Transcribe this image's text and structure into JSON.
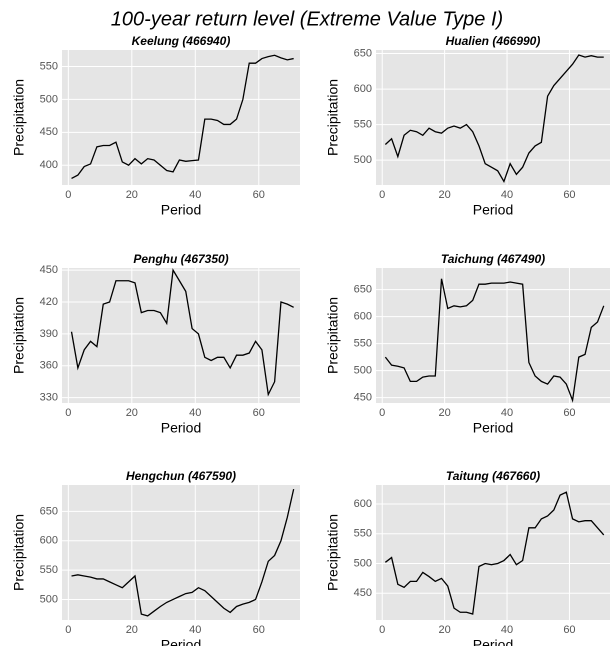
{
  "title": "100-year return level  (Extreme Value Type I)",
  "chart_data": [
    {
      "type": "line",
      "title": "Keelung (466940)",
      "x_label": "Period",
      "y_label": "Precipitation",
      "x": [
        1,
        3,
        5,
        7,
        9,
        11,
        13,
        15,
        17,
        19,
        21,
        23,
        25,
        27,
        29,
        31,
        33,
        35,
        37,
        39,
        41,
        43,
        45,
        47,
        49,
        51,
        53,
        55,
        57,
        59,
        61,
        63,
        65,
        67,
        69,
        71
      ],
      "values": [
        380,
        385,
        398,
        402,
        428,
        430,
        430,
        435,
        405,
        400,
        410,
        402,
        410,
        408,
        400,
        392,
        390,
        408,
        406,
        407,
        408,
        470,
        470,
        468,
        462,
        462,
        470,
        500,
        555,
        555,
        562,
        565,
        567,
        563,
        560,
        562
      ],
      "xlim": [
        -2,
        73
      ],
      "xticks": [
        0,
        20,
        40,
        60
      ],
      "ylim": [
        370,
        575
      ],
      "yticks": [
        400,
        450,
        500,
        550
      ],
      "color": "#000000",
      "grid": true
    },
    {
      "type": "line",
      "title": "Hualien (466990)",
      "x_label": "Period",
      "y_label": "Precipitation",
      "x": [
        1,
        3,
        5,
        7,
        9,
        11,
        13,
        15,
        17,
        19,
        21,
        23,
        25,
        27,
        29,
        31,
        33,
        35,
        37,
        39,
        41,
        43,
        45,
        47,
        49,
        51,
        53,
        55,
        57,
        59,
        61,
        63,
        65,
        67,
        69,
        71
      ],
      "values": [
        522,
        530,
        505,
        535,
        542,
        540,
        535,
        545,
        540,
        538,
        545,
        548,
        545,
        550,
        540,
        520,
        495,
        490,
        485,
        470,
        495,
        480,
        490,
        510,
        520,
        525,
        590,
        605,
        615,
        625,
        635,
        648,
        645,
        647,
        645,
        645
      ],
      "xlim": [
        -2,
        73
      ],
      "xticks": [
        0,
        20,
        40,
        60
      ],
      "ylim": [
        465,
        655
      ],
      "yticks": [
        500,
        550,
        600,
        650
      ],
      "color": "#000000",
      "grid": true
    },
    {
      "type": "line",
      "title": "Penghu (467350)",
      "x_label": "Period",
      "y_label": "Precipitation",
      "x": [
        1,
        3,
        5,
        7,
        9,
        11,
        13,
        15,
        17,
        19,
        21,
        23,
        25,
        27,
        29,
        31,
        33,
        35,
        37,
        39,
        41,
        43,
        45,
        47,
        49,
        51,
        53,
        55,
        57,
        59,
        61,
        63,
        65,
        67,
        69,
        71
      ],
      "values": [
        392,
        358,
        375,
        383,
        378,
        418,
        420,
        440,
        440,
        440,
        438,
        410,
        412,
        412,
        410,
        400,
        450,
        440,
        430,
        395,
        390,
        368,
        365,
        368,
        368,
        358,
        370,
        370,
        372,
        383,
        375,
        333,
        345,
        420,
        418,
        415
      ],
      "xlim": [
        -2,
        73
      ],
      "xticks": [
        0,
        20,
        40,
        60
      ],
      "ylim": [
        325,
        452
      ],
      "yticks": [
        330,
        360,
        390,
        420,
        450
      ],
      "color": "#000000",
      "grid": true
    },
    {
      "type": "line",
      "title": "Taichung (467490)",
      "x_label": "Period",
      "y_label": "Precipitation",
      "x": [
        1,
        3,
        5,
        7,
        9,
        11,
        13,
        15,
        17,
        19,
        21,
        23,
        25,
        27,
        29,
        31,
        33,
        35,
        37,
        39,
        41,
        43,
        45,
        47,
        49,
        51,
        53,
        55,
        57,
        59,
        61,
        63,
        65,
        67,
        69,
        71
      ],
      "values": [
        525,
        510,
        508,
        505,
        480,
        480,
        488,
        490,
        490,
        670,
        615,
        620,
        618,
        620,
        630,
        660,
        660,
        662,
        662,
        662,
        664,
        662,
        660,
        515,
        490,
        480,
        475,
        490,
        488,
        475,
        445,
        525,
        530,
        580,
        590,
        620
      ],
      "xlim": [
        -2,
        73
      ],
      "xticks": [
        0,
        20,
        40,
        60
      ],
      "ylim": [
        440,
        690
      ],
      "yticks": [
        450,
        500,
        550,
        600,
        650
      ],
      "color": "#000000",
      "grid": true
    },
    {
      "type": "line",
      "title": "Hengchun (467590)",
      "x_label": "Period",
      "y_label": "Precipitation",
      "x": [
        1,
        3,
        5,
        7,
        9,
        11,
        13,
        15,
        17,
        19,
        21,
        23,
        25,
        27,
        29,
        31,
        33,
        35,
        37,
        39,
        41,
        43,
        45,
        47,
        49,
        51,
        53,
        55,
        57,
        59,
        61,
        63,
        65,
        67,
        69,
        71
      ],
      "values": [
        540,
        542,
        540,
        538,
        535,
        535,
        530,
        525,
        520,
        530,
        540,
        475,
        472,
        480,
        488,
        495,
        500,
        505,
        510,
        512,
        520,
        515,
        505,
        495,
        485,
        478,
        488,
        492,
        495,
        500,
        530,
        565,
        575,
        600,
        640,
        688
      ],
      "xlim": [
        -2,
        73
      ],
      "xticks": [
        0,
        20,
        40,
        60
      ],
      "ylim": [
        465,
        695
      ],
      "yticks": [
        500,
        550,
        600,
        650
      ],
      "color": "#000000",
      "grid": true
    },
    {
      "type": "line",
      "title": "Taitung (467660)",
      "x_label": "Period",
      "y_label": "Precipitation",
      "x": [
        1,
        3,
        5,
        7,
        9,
        11,
        13,
        15,
        17,
        19,
        21,
        23,
        25,
        27,
        29,
        31,
        33,
        35,
        37,
        39,
        41,
        43,
        45,
        47,
        49,
        51,
        53,
        55,
        57,
        59,
        61,
        63,
        65,
        67,
        69,
        71
      ],
      "values": [
        502,
        510,
        465,
        460,
        470,
        470,
        485,
        478,
        470,
        475,
        462,
        425,
        418,
        418,
        415,
        495,
        500,
        498,
        500,
        505,
        515,
        498,
        505,
        560,
        560,
        575,
        580,
        590,
        615,
        620,
        575,
        570,
        572,
        572,
        560,
        548
      ],
      "xlim": [
        -2,
        73
      ],
      "xticks": [
        0,
        20,
        40,
        60
      ],
      "ylim": [
        405,
        632
      ],
      "yticks": [
        450,
        500,
        550,
        600
      ],
      "color": "#000000",
      "grid": true
    }
  ]
}
